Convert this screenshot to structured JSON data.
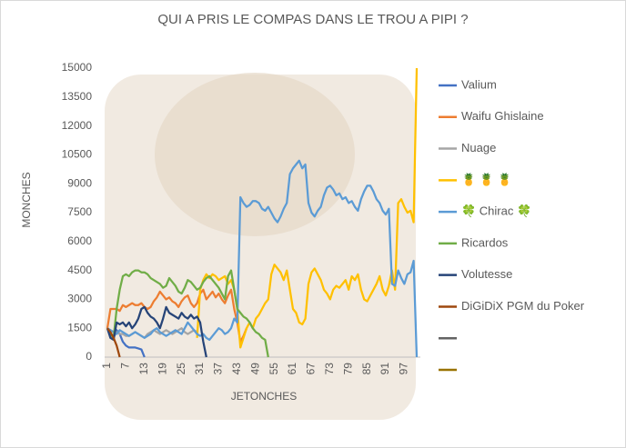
{
  "chart_data": {
    "type": "line",
    "title": "QUI A PRIS LE COMPAS DANS LE TROU A PIPI ?",
    "y_label": "MONCHES",
    "x_label": "JETONCHES",
    "categories": [
      1,
      null,
      null,
      null,
      null,
      null,
      7,
      null,
      null,
      null,
      null,
      null,
      13,
      null,
      null,
      null,
      null,
      null,
      19,
      null,
      null,
      null,
      null,
      null,
      25,
      null,
      null,
      null,
      null,
      null,
      31,
      null,
      null,
      null,
      null,
      null,
      37,
      null,
      null,
      null,
      null,
      null,
      43,
      null,
      null,
      null,
      null,
      null,
      49,
      null,
      null,
      null,
      null,
      null,
      55,
      null,
      null,
      null,
      null,
      null,
      61,
      null,
      null,
      null,
      null,
      null,
      67,
      null,
      null,
      null,
      null,
      null,
      73,
      null,
      null,
      null,
      null,
      null,
      79,
      null,
      null,
      null,
      null,
      null,
      85,
      null,
      null,
      null,
      null,
      null,
      91,
      null,
      null,
      null,
      null,
      null,
      97,
      null,
      null,
      null,
      null
    ],
    "ylim": [
      0,
      15000
    ],
    "yticks": [
      0,
      1500,
      3000,
      4500,
      6000,
      7500,
      9000,
      10500,
      12000,
      13500,
      15000
    ],
    "legend": "right",
    "series": [
      {
        "name": "Valium",
        "color": "#4472c4",
        "values": [
          1500,
          1000,
          1000,
          1400,
          1200,
          800,
          600,
          500,
          500,
          500,
          450,
          400,
          0,
          null,
          null,
          null,
          null,
          null,
          null,
          null,
          null,
          null,
          null,
          null,
          null,
          null,
          null,
          null,
          null,
          null,
          null,
          null,
          null,
          null,
          null,
          null,
          null,
          null,
          null,
          null,
          null,
          null,
          null,
          null,
          null,
          null,
          null,
          null,
          null,
          null,
          null,
          null,
          null,
          null,
          null,
          null,
          null,
          null,
          null,
          null,
          null,
          null,
          null,
          null,
          null,
          null,
          null,
          null,
          null,
          null,
          null,
          null,
          null,
          null,
          null,
          null,
          null,
          null,
          null,
          null,
          null,
          null,
          null,
          null,
          null,
          null,
          null,
          null,
          null,
          null,
          null,
          null,
          null,
          null,
          null,
          null,
          null,
          null,
          null,
          null,
          null
        ]
      },
      {
        "name": "Waifu Ghislaine",
        "color": "#ed7d31",
        "values": [
          1500,
          2500,
          2500,
          2500,
          2400,
          2700,
          2600,
          2700,
          2800,
          2700,
          2700,
          2800,
          2600,
          2500,
          2600,
          2900,
          3100,
          3400,
          3200,
          3000,
          3100,
          2900,
          2800,
          2600,
          2900,
          3100,
          3200,
          2800,
          2600,
          2800,
          3300,
          3500,
          3000,
          3200,
          3400,
          3100,
          3300,
          3000,
          2800,
          3200,
          3500,
          2500,
          1800,
          800,
          1100,
          1500,
          null,
          null,
          null,
          null,
          null,
          null,
          null,
          null,
          null,
          null,
          null,
          null,
          null,
          null,
          null,
          null,
          null,
          null,
          null,
          null,
          null,
          null,
          null,
          null,
          null,
          null,
          null,
          null,
          null,
          null,
          null,
          null,
          null,
          null,
          null,
          null,
          null,
          null,
          null,
          null,
          null,
          null,
          null,
          null,
          null,
          null,
          null,
          null,
          null,
          null,
          null,
          null,
          null,
          null,
          null
        ]
      },
      {
        "name": "Nuage",
        "color": "#a5a5a5",
        "values": [
          1500,
          1400,
          1300,
          1300,
          1200,
          1200,
          1100,
          1100,
          1200,
          1300,
          1200,
          1100,
          1000,
          1200,
          1300,
          1400,
          1300,
          1200,
          1300,
          1400,
          1300,
          1200,
          1300,
          1400,
          1500,
          1300,
          1200,
          1300,
          1400,
          1300,
          null,
          null,
          null,
          null,
          null,
          null,
          null,
          null,
          null,
          null,
          null,
          null,
          null,
          null,
          null,
          null,
          null,
          null,
          null,
          null,
          null,
          null,
          null,
          null,
          null,
          null,
          null,
          null,
          null,
          null,
          null,
          null,
          null,
          null,
          null,
          null,
          null,
          null,
          null,
          null,
          null,
          null,
          null,
          null,
          null,
          null,
          null,
          null,
          null,
          null,
          null,
          null,
          null,
          null,
          null,
          null,
          null,
          null,
          null,
          null,
          null,
          null,
          null,
          null,
          null,
          null,
          null,
          null,
          null,
          null,
          null
        ]
      },
      {
        "name": "🍍 🍍 🍍",
        "color": "#ffc000",
        "values": [
          null,
          null,
          null,
          null,
          null,
          null,
          null,
          null,
          null,
          null,
          null,
          null,
          null,
          null,
          null,
          null,
          null,
          null,
          null,
          null,
          null,
          null,
          null,
          null,
          null,
          null,
          null,
          null,
          null,
          1000,
          3500,
          4000,
          4300,
          4100,
          4300,
          4200,
          4000,
          4100,
          4200,
          3800,
          4000,
          3500,
          2500,
          500,
          1000,
          1500,
          1800,
          1500,
          2000,
          2200,
          2500,
          2800,
          3000,
          4300,
          4800,
          4600,
          4400,
          4000,
          4500,
          3500,
          2500,
          2300,
          1800,
          1700,
          2000,
          3800,
          4400,
          4600,
          4300,
          4000,
          3500,
          3300,
          3000,
          3500,
          3700,
          3600,
          3800,
          4000,
          3500,
          4200,
          4000,
          4300,
          3500,
          3000,
          2900,
          3200,
          3500,
          3800,
          4200,
          3500,
          3200,
          3700,
          4500,
          3500,
          8000,
          8200,
          7800,
          7500,
          7600,
          7000,
          15000
        ]
      },
      {
        "name": "🍀 Chirac 🍀",
        "color": "#5b9bd5",
        "values": [
          1500,
          1400,
          1300,
          1200,
          1400,
          1300,
          1200,
          1100,
          1200,
          1300,
          1200,
          1100,
          1000,
          1100,
          1200,
          1400,
          1500,
          1300,
          1200,
          1100,
          1200,
          1300,
          1400,
          1300,
          1200,
          1500,
          1800,
          1600,
          1400,
          1200,
          1100,
          1200,
          1000,
          900,
          1100,
          1300,
          1500,
          1400,
          1200,
          1300,
          1500,
          2000,
          1800,
          8300,
          8000,
          7800,
          7900,
          8100,
          8100,
          8000,
          7700,
          7600,
          7800,
          7500,
          7200,
          7000,
          7300,
          7700,
          8000,
          9500,
          9800,
          10000,
          10200,
          9800,
          10000,
          8000,
          7500,
          7300,
          7600,
          7800,
          8400,
          8800,
          8900,
          8700,
          8400,
          8500,
          8200,
          8300,
          8000,
          8100,
          7800,
          7600,
          8200,
          8600,
          8900,
          8900,
          8600,
          8200,
          8000,
          7600,
          7400,
          7700,
          3800,
          3700,
          4500,
          4100,
          3800,
          4300,
          4400,
          5000,
          0
        ]
      },
      {
        "name": "Ricardos",
        "color": "#70ad47",
        "values": [
          1500,
          1200,
          1000,
          2500,
          3500,
          4200,
          4300,
          4200,
          4400,
          4500,
          4500,
          4400,
          4400,
          4300,
          4100,
          4000,
          3900,
          3800,
          3600,
          3700,
          4100,
          3900,
          3700,
          3400,
          3300,
          3600,
          4000,
          3900,
          3700,
          3500,
          3600,
          3900,
          4100,
          4200,
          4000,
          3800,
          3600,
          3300,
          3000,
          4200,
          4500,
          3500,
          2500,
          2300,
          2100,
          2000,
          1800,
          1500,
          1300,
          1200,
          1000,
          900,
          0,
          null,
          null,
          null,
          null,
          null,
          null,
          null,
          null,
          null,
          null,
          null,
          null,
          null,
          null,
          null,
          null,
          null,
          null,
          null,
          null,
          null,
          null,
          null,
          null,
          null,
          null,
          null,
          null,
          null,
          null,
          null,
          null,
          null,
          null,
          null,
          null,
          null,
          null,
          null,
          null,
          null,
          null,
          null,
          null,
          null,
          null,
          null,
          null
        ]
      },
      {
        "name": "Volutesse",
        "color": "#264478",
        "values": [
          1500,
          1000,
          900,
          1800,
          1700,
          1800,
          1600,
          1800,
          1500,
          1700,
          2000,
          2500,
          2600,
          2300,
          2100,
          2000,
          1800,
          1500,
          2000,
          2600,
          2300,
          2200,
          2100,
          2000,
          2300,
          2100,
          2000,
          2200,
          2000,
          2100,
          1800,
          800,
          0,
          null,
          null,
          null,
          null,
          null,
          null,
          null,
          null,
          null,
          null,
          null,
          null,
          null,
          null,
          null,
          null,
          null,
          null,
          null,
          null,
          null,
          null,
          null,
          null,
          null,
          null,
          null,
          null,
          null,
          null,
          null,
          null,
          null,
          null,
          null,
          null,
          null,
          null,
          null,
          null,
          null,
          null,
          null,
          null,
          null,
          null,
          null,
          null,
          null,
          null,
          null,
          null,
          null,
          null,
          null,
          null,
          null,
          null,
          null,
          null,
          null,
          null,
          null,
          null,
          null,
          null,
          null,
          null
        ]
      },
      {
        "name": "DiGiDiX PGM du Poker",
        "color": "#9e480e",
        "values": [
          1500,
          1300,
          1000,
          600,
          0,
          null,
          null,
          null,
          null,
          null,
          null,
          null,
          null,
          null,
          null,
          null,
          null,
          null,
          null,
          null,
          null,
          null,
          null,
          null,
          null,
          null,
          null,
          null,
          null,
          null,
          null,
          null,
          null,
          null,
          null,
          null,
          null,
          null,
          null,
          null,
          null,
          null,
          null,
          null,
          null,
          null,
          null,
          null,
          null,
          null,
          null,
          null,
          null,
          null,
          null,
          null,
          null,
          null,
          null,
          null,
          null,
          null,
          null,
          null,
          null,
          null,
          null,
          null,
          null,
          null,
          null,
          null,
          null,
          null,
          null,
          null,
          null,
          null,
          null,
          null,
          null,
          null,
          null,
          null,
          null,
          null,
          null,
          null,
          null,
          null,
          null,
          null,
          null,
          null,
          null,
          null,
          null,
          null,
          null,
          null,
          null
        ]
      },
      {
        "color": "#636363"
      },
      {
        "color": "#997300"
      }
    ]
  }
}
